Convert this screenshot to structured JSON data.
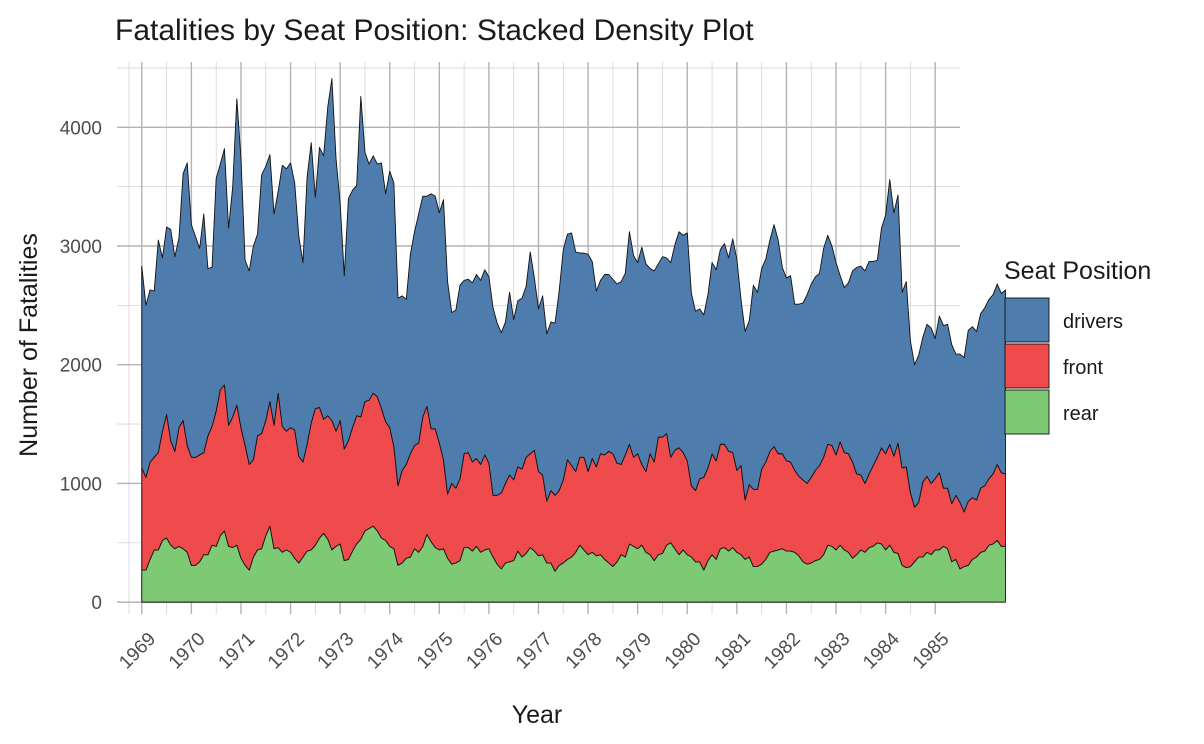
{
  "chart_data": {
    "type": "area",
    "stacked": true,
    "title": "Fatalities by Seat Position: Stacked Density Plot",
    "xlabel": "Year",
    "ylabel": "Number of Fatalities",
    "xlim": [
      1968.5,
      1985.5
    ],
    "ylim": [
      -100,
      4550
    ],
    "x_ticks": [
      "1969",
      "1970",
      "1971",
      "1972",
      "1973",
      "1974",
      "1975",
      "1976",
      "1977",
      "1978",
      "1979",
      "1980",
      "1981",
      "1982",
      "1983",
      "1984",
      "1985"
    ],
    "y_ticks": [
      "0",
      "1000",
      "2000",
      "3000",
      "4000"
    ],
    "grid": true,
    "legend_title": "Seat Position",
    "legend_position": "right",
    "x_start": 1969,
    "x_step": 0.0833333,
    "series": [
      {
        "name": "rear",
        "color": "#7ec974",
        "values": [
          270,
          270,
          360,
          440,
          440,
          520,
          540,
          480,
          450,
          470,
          450,
          420,
          310,
          310,
          340,
          400,
          400,
          480,
          470,
          560,
          600,
          470,
          460,
          480,
          370,
          310,
          270,
          380,
          440,
          450,
          560,
          640,
          450,
          460,
          420,
          440,
          420,
          370,
          330,
          380,
          430,
          440,
          480,
          540,
          580,
          530,
          440,
          470,
          490,
          350,
          360,
          430,
          490,
          530,
          600,
          620,
          640,
          600,
          540,
          520,
          470,
          450,
          310,
          330,
          370,
          380,
          450,
          420,
          470,
          570,
          510,
          460,
          440,
          450,
          370,
          320,
          330,
          350,
          460,
          460,
          430,
          470,
          420,
          440,
          450,
          380,
          320,
          280,
          330,
          340,
          350,
          430,
          380,
          410,
          460,
          430,
          390,
          400,
          330,
          330,
          260,
          310,
          330,
          360,
          380,
          420,
          480,
          440,
          400,
          420,
          390,
          400,
          360,
          330,
          300,
          340,
          400,
          380,
          490,
          470,
          450,
          480,
          420,
          400,
          350,
          400,
          410,
          480,
          500,
          450,
          400,
          440,
          400,
          380,
          340,
          340,
          270,
          350,
          400,
          360,
          450,
          460,
          430,
          460,
          420,
          400,
          360,
          380,
          300,
          300,
          320,
          360,
          420,
          430,
          440,
          450,
          430,
          430,
          420,
          390,
          340,
          320,
          330,
          350,
          360,
          400,
          480,
          470,
          440,
          480,
          440,
          420,
          370,
          400,
          440,
          420,
          460,
          470,
          500,
          490,
          440,
          480,
          420,
          410,
          310,
          290,
          300,
          340,
          380,
          380,
          420,
          400,
          440,
          440,
          470,
          450,
          340,
          360,
          280,
          300,
          310,
          360,
          380,
          420,
          430,
          480,
          490,
          520,
          470,
          470
        ]
      },
      {
        "name": "front",
        "color": "#f04b4c",
        "values": [
          860,
          780,
          820,
          780,
          820,
          920,
          1040,
          880,
          820,
          1000,
          1080,
          900,
          910,
          910,
          900,
          860,
          1000,
          1000,
          1140,
          1230,
          1230,
          1020,
          1100,
          1180,
          1100,
          1010,
          890,
          820,
          960,
          970,
          970,
          1050,
          1040,
          1300,
          1060,
          1000,
          1050,
          1080,
          900,
          800,
          900,
          1070,
          1150,
          1100,
          960,
          1040,
          1090,
          970,
          1040,
          940,
          1000,
          1040,
          1080,
          1030,
          1090,
          1080,
          1120,
          1130,
          1090,
          1000,
          1000,
          860,
          670,
          780,
          790,
          870,
          870,
          920,
          1090,
          1080,
          950,
          1000,
          900,
          750,
          540,
          680,
          630,
          690,
          790,
          800,
          750,
          740,
          740,
          800,
          720,
          520,
          580,
          640,
          670,
          730,
          680,
          710,
          740,
          810,
          790,
          850,
          710,
          670,
          520,
          610,
          640,
          630,
          700,
          840,
          770,
          680,
          740,
          780,
          700,
          790,
          750,
          850,
          880,
          940,
          950,
          830,
          760,
          860,
          840,
          750,
          800,
          680,
          680,
          850,
          830,
          990,
          980,
          940,
          720,
          830,
          900,
          820,
          790,
          600,
          600,
          700,
          780,
          780,
          850,
          830,
          880,
          870,
          840,
          800,
          690,
          750,
          500,
          610,
          650,
          650,
          800,
          820,
          850,
          880,
          810,
          800,
          760,
          750,
          690,
          670,
          690,
          680,
          720,
          760,
          790,
          820,
          850,
          850,
          800,
          870,
          820,
          830,
          810,
          680,
          630,
          580,
          620,
          680,
          720,
          810,
          810,
          850,
          810,
          930,
          820,
          850,
          620,
          460,
          460,
          630,
          640,
          600,
          600,
          650,
          490,
          510,
          490,
          540,
          560,
          460,
          540,
          520,
          480,
          540,
          550,
          560,
          590,
          640,
          620,
          610
        ]
      },
      {
        "name": "drivers",
        "color": "#4e7cad",
        "values": [
          1700,
          1450,
          1450,
          1400,
          1790,
          1460,
          1580,
          1780,
          1640,
          1600,
          2080,
          2380,
          1960,
          1860,
          1740,
          2010,
          1410,
          1340,
          1960,
          1900,
          1990,
          1660,
          1940,
          2580,
          2270,
          1560,
          1630,
          1800,
          1700,
          2180,
          2140,
          2080,
          1780,
          1700,
          2200,
          2210,
          2230,
          2080,
          1850,
          1680,
          2250,
          2360,
          1780,
          2190,
          2220,
          2600,
          2880,
          2300,
          1830,
          1460,
          2040,
          2000,
          1940,
          2700,
          2100,
          1990,
          2000,
          1960,
          2070,
          1920,
          2160,
          2220,
          1580,
          1470,
          1390,
          1680,
          1800,
          1930,
          1860,
          1770,
          1980,
          1960,
          1940,
          2190,
          1790,
          1440,
          1500,
          1630,
          1460,
          1460,
          1510,
          1550,
          1550,
          1560,
          1570,
          1580,
          1450,
          1350,
          1360,
          1540,
          1350,
          1400,
          1440,
          1440,
          1700,
          1450,
          1370,
          1510,
          1410,
          1420,
          1450,
          1680,
          1940,
          1900,
          1960,
          1850,
          1720,
          1720,
          1830,
          1660,
          1480,
          1460,
          1520,
          1490,
          1470,
          1510,
          1540,
          1530,
          1790,
          1700,
          1610,
          1830,
          1750,
          1560,
          1610,
          1460,
          1520,
          1480,
          1640,
          1730,
          1820,
          1830,
          1920,
          1620,
          1510,
          1430,
          1370,
          1460,
          1610,
          1610,
          1640,
          1690,
          1630,
          1800,
          1780,
          1400,
          1420,
          1380,
          1720,
          1660,
          1690,
          1710,
          1780,
          1870,
          1800,
          1570,
          1540,
          1570,
          1400,
          1450,
          1490,
          1590,
          1630,
          1630,
          1620,
          1760,
          1760,
          1680,
          1620,
          1400,
          1390,
          1440,
          1610,
          1740,
          1760,
          1790,
          1790,
          1720,
          1660,
          1850,
          2010,
          2230,
          2050,
          2090,
          1480,
          1560,
          1280,
          1200,
          1240,
          1220,
          1280,
          1310,
          1180,
          1320,
          1370,
          1380,
          1340,
          1190,
          1250,
          1300,
          1440,
          1440,
          1420,
          1470,
          1500,
          1510,
          1510,
          1520,
          1510,
          1550,
          1740,
          1740
        ]
      }
    ]
  }
}
